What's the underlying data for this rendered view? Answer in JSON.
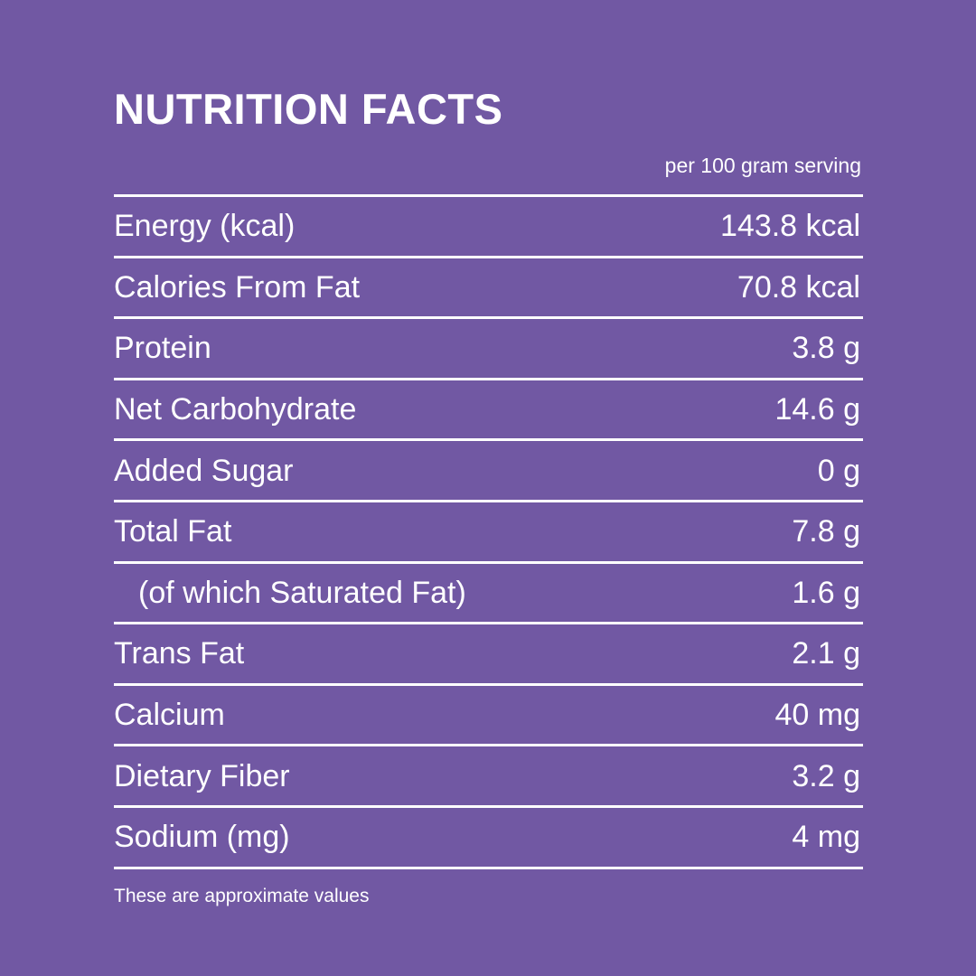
{
  "title": "NUTRITION FACTS",
  "serving": "per 100 gram serving",
  "rows": [
    {
      "label": "Energy (kcal)",
      "value": "143.8 kcal"
    },
    {
      "label": "Calories From Fat",
      "value": "70.8 kcal"
    },
    {
      "label": "Protein",
      "value": "3.8 g"
    },
    {
      "label": "Net Carbohydrate",
      "value": "14.6 g"
    },
    {
      "label": "Added Sugar",
      "value": "0 g"
    },
    {
      "label": "Total Fat",
      "value": "7.8 g"
    },
    {
      "label": "(of which Saturated Fat)",
      "value": "1.6 g",
      "indent": true
    },
    {
      "label": "Trans Fat",
      "value": "2.1 g"
    },
    {
      "label": "Calcium",
      "value": "40 mg"
    },
    {
      "label": "Dietary Fiber",
      "value": "3.2 g"
    },
    {
      "label": "Sodium (mg)",
      "value": "4 mg"
    }
  ],
  "note": "These are approximate values",
  "colors": {
    "background": "#7158a3",
    "text": "#ffffff"
  }
}
